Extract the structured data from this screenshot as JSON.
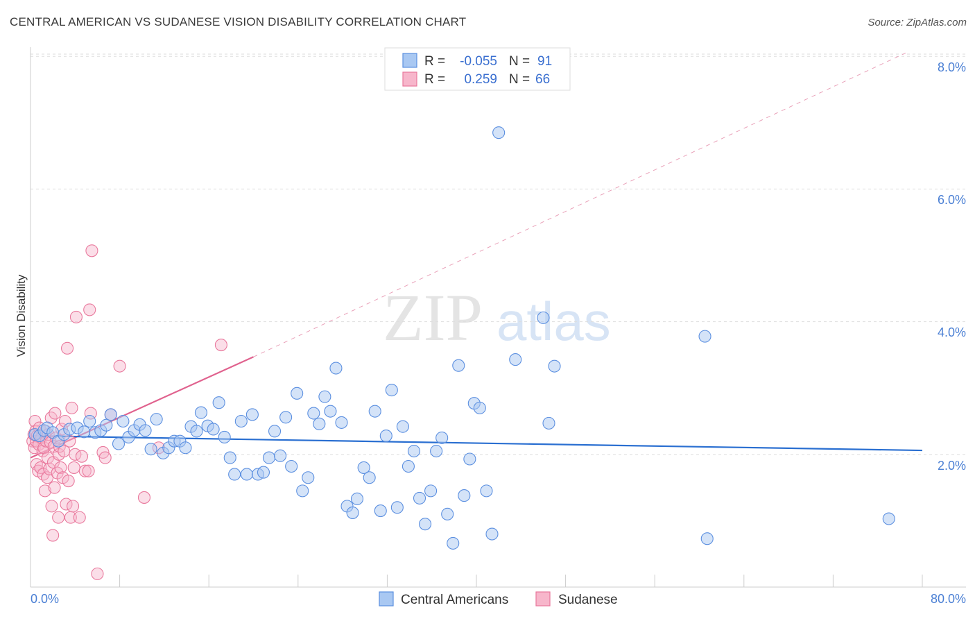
{
  "title": "CENTRAL AMERICAN VS SUDANESE VISION DISABILITY CORRELATION CHART",
  "source": "Source: ZipAtlas.com",
  "watermark": {
    "zip": "ZIP",
    "atlas": "atlas"
  },
  "colors": {
    "blue_fill": "#a9c8f2",
    "blue_stroke": "#5b8fe0",
    "blue_line": "#2a6fd1",
    "pink_fill": "#f7b6cb",
    "pink_stroke": "#e9799d",
    "pink_line": "#e0628e",
    "tick_text": "#4a7fd4",
    "grid": "#dddddd"
  },
  "legend": {
    "rows": [
      {
        "r_label": "R =",
        "r_value": "-0.055",
        "n_label": "N =",
        "n_value": "91",
        "series": "Central Americans"
      },
      {
        "r_label": "R =",
        "r_value": "0.259",
        "n_label": "N =",
        "n_value": "66",
        "series": "Sudanese"
      }
    ]
  },
  "chart_data": {
    "type": "scatter",
    "title": "CENTRAL AMERICAN VS SUDANESE VISION DISABILITY CORRELATION CHART",
    "xlabel": "",
    "ylabel": "Vision Disability",
    "xlim": [
      0,
      80
    ],
    "ylim": [
      0,
      8.35
    ],
    "x_tick_labels": [
      "0.0%",
      "80.0%"
    ],
    "y_ticks": [
      2,
      4,
      6,
      8
    ],
    "y_tick_labels": [
      "2.0%",
      "4.0%",
      "6.0%",
      "8.0%"
    ],
    "grid": true,
    "legend_position": "top-center",
    "series": [
      {
        "name": "Central Americans",
        "r": -0.055,
        "n": 91,
        "trend": {
          "x": [
            0,
            80
          ],
          "y": [
            2.28,
            2.06
          ]
        },
        "points": [
          [
            0.4,
            2.3
          ],
          [
            0.8,
            2.28
          ],
          [
            1.2,
            2.36
          ],
          [
            1.5,
            2.4
          ],
          [
            2.0,
            2.33
          ],
          [
            2.5,
            2.2
          ],
          [
            3.0,
            2.3
          ],
          [
            3.5,
            2.38
          ],
          [
            4.2,
            2.4
          ],
          [
            4.8,
            2.34
          ],
          [
            5.3,
            2.5
          ],
          [
            5.8,
            2.33
          ],
          [
            6.3,
            2.36
          ],
          [
            6.8,
            2.44
          ],
          [
            7.2,
            2.6
          ],
          [
            7.9,
            2.16
          ],
          [
            8.3,
            2.5
          ],
          [
            8.8,
            2.26
          ],
          [
            9.3,
            2.36
          ],
          [
            9.8,
            2.45
          ],
          [
            10.3,
            2.36
          ],
          [
            10.8,
            2.08
          ],
          [
            11.3,
            2.53
          ],
          [
            11.9,
            2.02
          ],
          [
            12.4,
            2.1
          ],
          [
            12.9,
            2.2
          ],
          [
            13.4,
            2.2
          ],
          [
            13.9,
            2.1
          ],
          [
            14.4,
            2.42
          ],
          [
            14.9,
            2.35
          ],
          [
            15.3,
            2.63
          ],
          [
            15.9,
            2.43
          ],
          [
            16.4,
            2.38
          ],
          [
            16.9,
            2.78
          ],
          [
            17.4,
            2.26
          ],
          [
            17.9,
            1.95
          ],
          [
            18.3,
            1.7
          ],
          [
            18.9,
            2.5
          ],
          [
            19.4,
            1.7
          ],
          [
            19.9,
            2.6
          ],
          [
            20.4,
            1.7
          ],
          [
            20.9,
            1.73
          ],
          [
            21.4,
            1.95
          ],
          [
            21.9,
            2.35
          ],
          [
            22.4,
            1.98
          ],
          [
            22.9,
            2.56
          ],
          [
            23.4,
            1.82
          ],
          [
            23.9,
            2.92
          ],
          [
            24.4,
            1.45
          ],
          [
            24.9,
            1.65
          ],
          [
            25.4,
            2.62
          ],
          [
            25.9,
            2.46
          ],
          [
            26.4,
            2.87
          ],
          [
            26.9,
            2.65
          ],
          [
            27.4,
            3.3
          ],
          [
            27.9,
            2.48
          ],
          [
            28.4,
            1.22
          ],
          [
            28.9,
            1.12
          ],
          [
            29.3,
            1.33
          ],
          [
            29.9,
            1.8
          ],
          [
            30.4,
            1.65
          ],
          [
            30.9,
            2.65
          ],
          [
            31.4,
            1.15
          ],
          [
            31.9,
            2.28
          ],
          [
            32.4,
            2.97
          ],
          [
            32.9,
            1.2
          ],
          [
            33.4,
            2.42
          ],
          [
            33.9,
            1.82
          ],
          [
            34.4,
            2.05
          ],
          [
            34.9,
            1.34
          ],
          [
            35.4,
            0.95
          ],
          [
            35.9,
            1.45
          ],
          [
            36.4,
            2.05
          ],
          [
            36.9,
            2.25
          ],
          [
            37.4,
            1.1
          ],
          [
            37.9,
            0.66
          ],
          [
            38.4,
            3.34
          ],
          [
            38.9,
            1.38
          ],
          [
            39.4,
            1.93
          ],
          [
            39.8,
            2.77
          ],
          [
            40.3,
            2.7
          ],
          [
            40.9,
            1.45
          ],
          [
            41.4,
            0.8
          ],
          [
            42.0,
            6.85
          ],
          [
            43.5,
            3.43
          ],
          [
            46.0,
            4.06
          ],
          [
            46.5,
            2.47
          ],
          [
            47.0,
            3.33
          ],
          [
            60.5,
            3.78
          ],
          [
            60.7,
            0.73
          ],
          [
            77.0,
            1.03
          ]
        ]
      },
      {
        "name": "Sudanese",
        "r": 0.259,
        "n": 66,
        "trend": {
          "x": [
            0,
            20
          ],
          "y": [
            1.95,
            3.47
          ]
        },
        "trend_dashed": {
          "x": [
            20,
            78.5
          ],
          "y": [
            3.47,
            8.05
          ]
        },
        "points": [
          [
            0.2,
            2.2
          ],
          [
            0.3,
            2.3
          ],
          [
            0.35,
            2.1
          ],
          [
            0.4,
            2.5
          ],
          [
            0.45,
            2.35
          ],
          [
            0.5,
            2.2
          ],
          [
            0.55,
            1.85
          ],
          [
            0.6,
            2.28
          ],
          [
            0.7,
            1.75
          ],
          [
            0.75,
            2.15
          ],
          [
            0.8,
            2.4
          ],
          [
            0.9,
            1.8
          ],
          [
            1.0,
            2.25
          ],
          [
            1.1,
            2.05
          ],
          [
            1.15,
            1.7
          ],
          [
            1.2,
            2.1
          ],
          [
            1.3,
            1.45
          ],
          [
            1.35,
            2.35
          ],
          [
            1.4,
            2.2
          ],
          [
            1.5,
            1.65
          ],
          [
            1.55,
            1.95
          ],
          [
            1.6,
            2.3
          ],
          [
            1.7,
            1.78
          ],
          [
            1.8,
            2.18
          ],
          [
            1.85,
            2.55
          ],
          [
            1.9,
            1.22
          ],
          [
            2.0,
            0.78
          ],
          [
            2.05,
            1.88
          ],
          [
            2.1,
            2.12
          ],
          [
            2.15,
            1.5
          ],
          [
            2.2,
            2.62
          ],
          [
            2.3,
            2.25
          ],
          [
            2.4,
            1.72
          ],
          [
            2.5,
            1.05
          ],
          [
            2.55,
            2.0
          ],
          [
            2.6,
            2.12
          ],
          [
            2.7,
            1.8
          ],
          [
            2.8,
            2.38
          ],
          [
            2.9,
            1.65
          ],
          [
            3.0,
            2.05
          ],
          [
            3.1,
            2.5
          ],
          [
            3.2,
            1.25
          ],
          [
            3.3,
            3.6
          ],
          [
            3.4,
            1.6
          ],
          [
            3.5,
            2.2
          ],
          [
            3.6,
            1.05
          ],
          [
            3.7,
            2.7
          ],
          [
            3.8,
            1.22
          ],
          [
            3.9,
            1.8
          ],
          [
            4.0,
            2.0
          ],
          [
            4.1,
            4.07
          ],
          [
            4.4,
            1.05
          ],
          [
            4.6,
            1.97
          ],
          [
            4.9,
            1.75
          ],
          [
            5.2,
            1.75
          ],
          [
            5.3,
            4.18
          ],
          [
            5.4,
            2.62
          ],
          [
            5.5,
            5.07
          ],
          [
            6.0,
            0.2
          ],
          [
            6.5,
            2.03
          ],
          [
            6.7,
            1.95
          ],
          [
            7.2,
            2.6
          ],
          [
            8.0,
            3.33
          ],
          [
            10.2,
            1.35
          ],
          [
            11.5,
            2.1
          ],
          [
            17.1,
            3.65
          ]
        ]
      }
    ]
  }
}
